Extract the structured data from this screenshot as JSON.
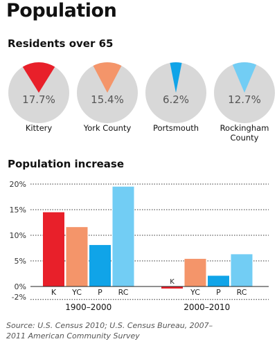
{
  "page": {
    "title": "Population",
    "source": "Source: U.S. Census 2010; U.S. Census Bureau, 2007–2011 American Community Survey"
  },
  "chart_data": [
    {
      "type": "pie",
      "title": "Residents over 65",
      "unit": "%",
      "items": [
        {
          "label": "Kittery",
          "value": 17.7,
          "display": "17.7%",
          "color": "#e8202a"
        },
        {
          "label": "York County",
          "value": 15.4,
          "display": "15.4%",
          "color": "#f4956a"
        },
        {
          "label": "Portsmouth",
          "value": 6.2,
          "display": "6.2%",
          "color": "#10a4e8"
        },
        {
          "label": "Rockingham County",
          "value": 12.7,
          "display": "12.7%",
          "color": "#72cdf4"
        }
      ],
      "remainder_color": "#d8d8d8"
    },
    {
      "type": "bar",
      "title": "Population increase",
      "ylim": [
        -2,
        20
      ],
      "yticks": [
        20,
        15,
        10,
        5,
        0,
        -2
      ],
      "ytick_labels": [
        "20%",
        "15%",
        "10%",
        "5%",
        "0%",
        "-2%"
      ],
      "groups": [
        {
          "label": "1900–2000",
          "bars": [
            {
              "label": "K",
              "value": 14.5,
              "color": "#e8202a"
            },
            {
              "label": "YC",
              "value": 11.6,
              "color": "#f4956a"
            },
            {
              "label": "P",
              "value": 8.1,
              "color": "#10a4e8"
            },
            {
              "label": "RC",
              "value": 19.5,
              "color": "#72cdf4"
            }
          ]
        },
        {
          "label": "2000–2010",
          "bars": [
            {
              "label": "K",
              "value": -0.4,
              "color": "#e8202a"
            },
            {
              "label": "YC",
              "value": 5.4,
              "color": "#f4956a"
            },
            {
              "label": "P",
              "value": 2.1,
              "color": "#10a4e8"
            },
            {
              "label": "RC",
              "value": 6.3,
              "color": "#72cdf4"
            }
          ]
        }
      ]
    }
  ]
}
